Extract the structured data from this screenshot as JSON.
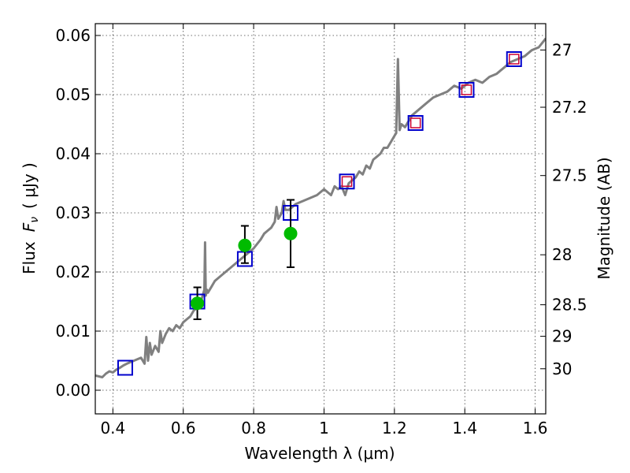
{
  "chart_data": {
    "type": "line",
    "xlabel": "Wavelength  λ (μm)",
    "ylabel": "Flux  F_ν  ( μJy )",
    "ylabel_parts": [
      "Flux",
      "F",
      "ν",
      "( μJy )"
    ],
    "right_ylabel": "Magnitude (AB)",
    "xlim": [
      0.35,
      1.63
    ],
    "ylim": [
      -0.004,
      0.062
    ],
    "grid": true,
    "x_ticks": [
      0.4,
      0.6,
      0.8,
      1.0,
      1.2,
      1.4,
      1.6
    ],
    "x_tick_labels": [
      "0.4",
      "0.6",
      "0.8",
      "1",
      "1.2",
      "1.4",
      "1.6"
    ],
    "y_ticks": [
      0.0,
      0.01,
      0.02,
      0.03,
      0.04,
      0.05,
      0.06
    ],
    "y_tick_labels": [
      "0.00",
      "0.01",
      "0.02",
      "0.03",
      "0.04",
      "0.05",
      "0.06"
    ],
    "right_ticks": [
      {
        "label": "27",
        "mag": 27.0
      },
      {
        "label": "27.2",
        "mag": 27.2
      },
      {
        "label": "27.5",
        "mag": 27.5
      },
      {
        "label": "28",
        "mag": 28.0
      },
      {
        "label": "28.5",
        "mag": 28.5
      },
      {
        "label": "29",
        "mag": 29.0
      },
      {
        "label": "30",
        "mag": 30.0
      }
    ],
    "series": [
      {
        "style": "line",
        "color": "#808080",
        "x": [
          0.35,
          0.37,
          0.38,
          0.39,
          0.4,
          0.41,
          0.42,
          0.43,
          0.44,
          0.46,
          0.48,
          0.49,
          0.495,
          0.5,
          0.505,
          0.51,
          0.52,
          0.53,
          0.535,
          0.54,
          0.55,
          0.56,
          0.57,
          0.58,
          0.59,
          0.6,
          0.61,
          0.62,
          0.63,
          0.64,
          0.65,
          0.655,
          0.66,
          0.662,
          0.664,
          0.667,
          0.67,
          0.68,
          0.69,
          0.7,
          0.72,
          0.74,
          0.76,
          0.78,
          0.8,
          0.82,
          0.83,
          0.84,
          0.85,
          0.86,
          0.865,
          0.87,
          0.875,
          0.88,
          0.885,
          0.89,
          0.9,
          0.92,
          0.94,
          0.96,
          0.98,
          1.0,
          1.02,
          1.03,
          1.04,
          1.05,
          1.06,
          1.07,
          1.08,
          1.09,
          1.1,
          1.11,
          1.12,
          1.13,
          1.14,
          1.15,
          1.16,
          1.17,
          1.18,
          1.19,
          1.2,
          1.205,
          1.21,
          1.215,
          1.22,
          1.23,
          1.25,
          1.27,
          1.29,
          1.31,
          1.33,
          1.35,
          1.37,
          1.39,
          1.41,
          1.43,
          1.45,
          1.47,
          1.49,
          1.51,
          1.53,
          1.55,
          1.57,
          1.59,
          1.61,
          1.63
        ],
        "y": [
          0.0025,
          0.0022,
          0.0028,
          0.0032,
          0.003,
          0.0035,
          0.0038,
          0.0042,
          0.0045,
          0.005,
          0.0055,
          0.0045,
          0.009,
          0.005,
          0.008,
          0.006,
          0.0075,
          0.0065,
          0.01,
          0.008,
          0.0095,
          0.0105,
          0.01,
          0.011,
          0.0105,
          0.0115,
          0.012,
          0.0125,
          0.0135,
          0.014,
          0.015,
          0.016,
          0.017,
          0.025,
          0.016,
          0.017,
          0.0165,
          0.0175,
          0.0185,
          0.019,
          0.02,
          0.021,
          0.022,
          0.023,
          0.024,
          0.0255,
          0.0265,
          0.027,
          0.0275,
          0.0285,
          0.031,
          0.029,
          0.0295,
          0.03,
          0.032,
          0.0305,
          0.0305,
          0.0315,
          0.032,
          0.0325,
          0.033,
          0.034,
          0.033,
          0.0345,
          0.034,
          0.0345,
          0.033,
          0.035,
          0.0355,
          0.036,
          0.037,
          0.0365,
          0.038,
          0.0375,
          0.039,
          0.0395,
          0.04,
          0.041,
          0.041,
          0.042,
          0.043,
          0.0435,
          0.056,
          0.044,
          0.045,
          0.0445,
          0.0465,
          0.0475,
          0.0485,
          0.0495,
          0.05,
          0.0505,
          0.0515,
          0.051,
          0.052,
          0.0525,
          0.052,
          0.053,
          0.0535,
          0.0545,
          0.0555,
          0.056,
          0.0565,
          0.0575,
          0.058,
          0.0595
        ]
      },
      {
        "style": "open-square",
        "color": "#0000cc",
        "x": [
          0.435,
          0.64,
          0.775,
          0.905,
          1.065,
          1.26,
          1.405,
          1.54
        ],
        "y": [
          0.0038,
          0.015,
          0.0222,
          0.03,
          0.0353,
          0.0452,
          0.0508,
          0.056
        ]
      },
      {
        "style": "open-square-inner",
        "color": "#cc0033",
        "x": [
          1.065,
          1.26,
          1.405,
          1.54
        ],
        "y": [
          0.0353,
          0.0452,
          0.0508,
          0.056
        ]
      },
      {
        "style": "filled-circle-errorbar",
        "color": "#00bb00",
        "x": [
          0.64,
          0.775,
          0.905
        ],
        "y": [
          0.0147,
          0.0245,
          0.0265
        ],
        "yerr_low": [
          0.0027,
          0.003,
          0.0057
        ],
        "yerr_high": [
          0.0027,
          0.0033,
          0.0057
        ]
      }
    ]
  }
}
